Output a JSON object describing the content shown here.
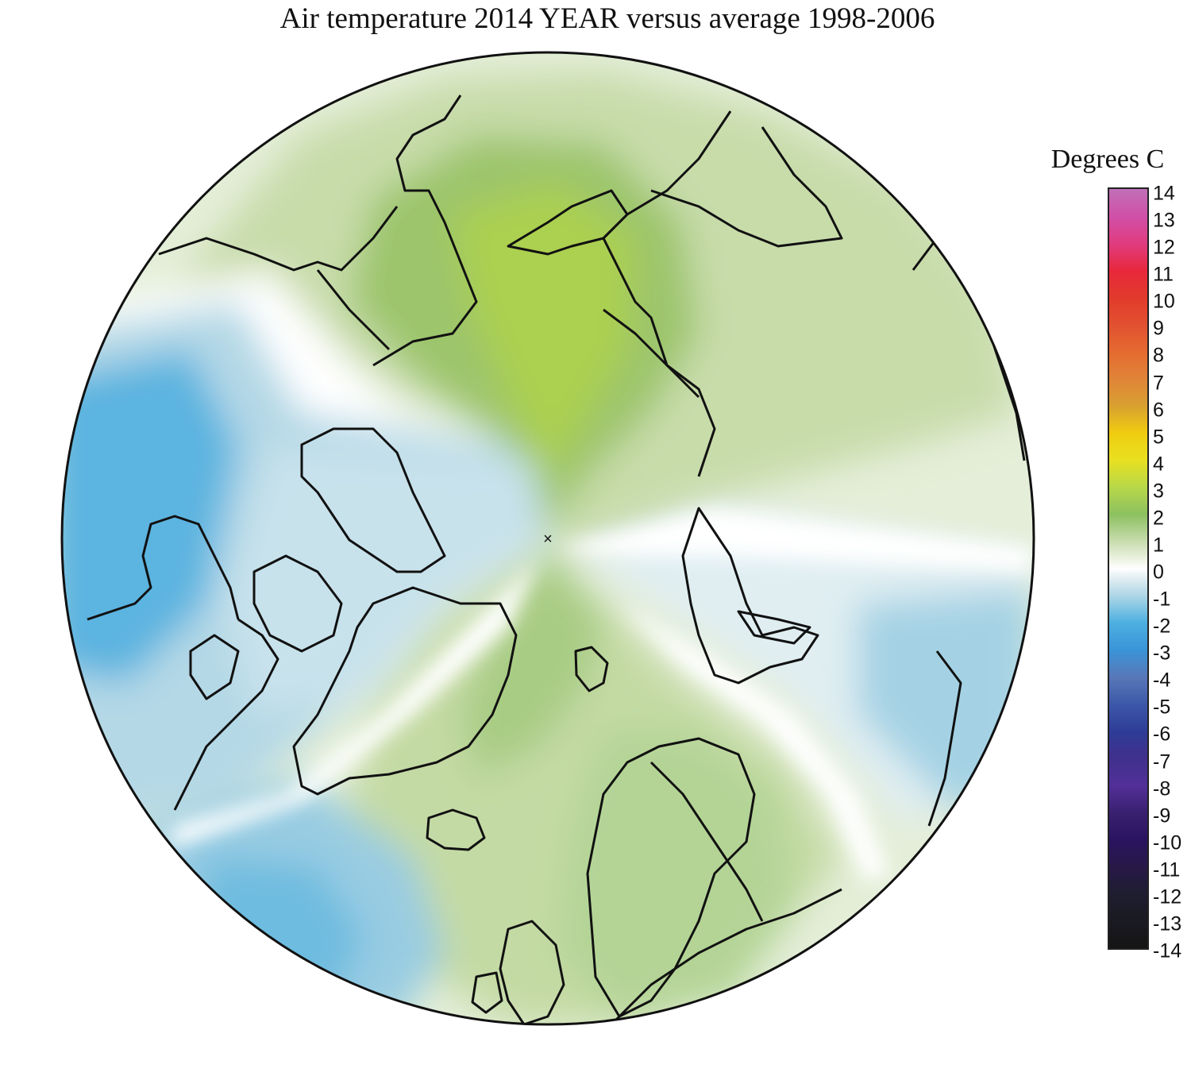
{
  "title": "Air temperature 2014 YEAR versus average 1998-2006",
  "legend": {
    "title": "Degrees C",
    "min": -14,
    "max": 14,
    "ticks": [
      "14",
      "13",
      "12",
      "11",
      "10",
      "9",
      "8",
      "7",
      "6",
      "5",
      "4",
      "3",
      "2",
      "1",
      "0",
      "-1",
      "-2",
      "-3",
      "-4",
      "-5",
      "-6",
      "-7",
      "-8",
      "-9",
      "-10",
      "-11",
      "-12",
      "-13",
      "-14"
    ],
    "color_stops": [
      {
        "value": 14,
        "color": "#c070b8"
      },
      {
        "value": 13,
        "color": "#d050a8"
      },
      {
        "value": 12,
        "color": "#e03c80"
      },
      {
        "value": 11,
        "color": "#e8283c"
      },
      {
        "value": 10,
        "color": "#e23a2c"
      },
      {
        "value": 9,
        "color": "#e25030"
      },
      {
        "value": 8,
        "color": "#e56a30"
      },
      {
        "value": 7,
        "color": "#e08438"
      },
      {
        "value": 6,
        "color": "#d8a030"
      },
      {
        "value": 5,
        "color": "#f0cc10"
      },
      {
        "value": 4,
        "color": "#e8e020"
      },
      {
        "value": 3,
        "color": "#b8d848"
      },
      {
        "value": 2,
        "color": "#8cc060"
      },
      {
        "value": 1,
        "color": "#c8dcae"
      },
      {
        "value": 0.3,
        "color": "#eef4e6"
      },
      {
        "value": 0,
        "color": "#ffffff"
      },
      {
        "value": -0.3,
        "color": "#e6f0f4"
      },
      {
        "value": -1,
        "color": "#aed6e6"
      },
      {
        "value": -2,
        "color": "#4cb0e0"
      },
      {
        "value": -3,
        "color": "#3a94d8"
      },
      {
        "value": -4,
        "color": "#5878b8"
      },
      {
        "value": -5,
        "color": "#3c58a8"
      },
      {
        "value": -6,
        "color": "#2e3c98"
      },
      {
        "value": -7,
        "color": "#40308c"
      },
      {
        "value": -8,
        "color": "#523098"
      },
      {
        "value": -9,
        "color": "#3a2070"
      },
      {
        "value": -10,
        "color": "#2a1460"
      },
      {
        "value": -11,
        "color": "#281848"
      },
      {
        "value": -12,
        "color": "#1e1e30"
      },
      {
        "value": -13,
        "color": "#1a1a22"
      },
      {
        "value": -14,
        "color": "#151515"
      }
    ]
  },
  "map": {
    "projection": "north polar stereographic",
    "center_marker": "×",
    "anomaly_colors": {
      "warm_2": "#acd058",
      "warm_1_5": "#98c468",
      "warm_1": "#bcd698",
      "warm_0_5": "#d4e4bc",
      "near_zero_warm": "#e8f0dc",
      "zero": "#ffffff",
      "near_zero_cool": "#e2eef2",
      "cool_0_5": "#c4e0ea",
      "cool_1": "#9ccfe2",
      "cool_1_5": "#6cbbe2",
      "cool_2": "#40a8e2"
    }
  }
}
